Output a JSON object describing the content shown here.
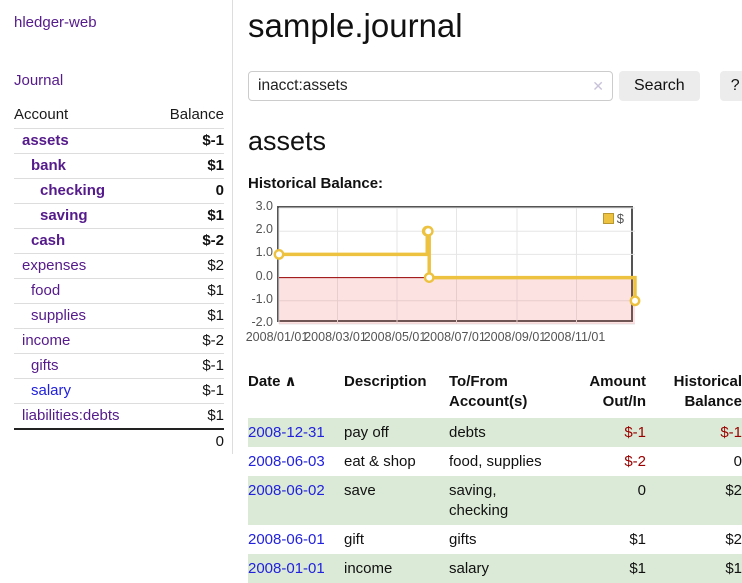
{
  "colors": {
    "link_purple": "#551a8b",
    "link_blue": "#2222dd",
    "negative_dark": "#990000",
    "negative_faded": "#b87878",
    "row_stripe_green": "#dbead6",
    "chart_series_yellow": "#edc240",
    "chart_negative_region": "#f7dada",
    "chart_zero_line": "#990000",
    "chart_border": "#545454",
    "button_bg": "#ececec"
  },
  "sidebar": {
    "brand": "hledger-web",
    "journal_link": "Journal",
    "table": {
      "account_header": "Account",
      "balance_header": "Balance",
      "accounts": [
        {
          "name": "assets",
          "depth": 0,
          "bold": true,
          "link_color": "purple",
          "balance": "$-1",
          "balance_style": "neg-dark"
        },
        {
          "name": "bank",
          "depth": 1,
          "bold": true,
          "link_color": "purple",
          "balance": "$1",
          "balance_style": "pos"
        },
        {
          "name": "checking",
          "depth": 2,
          "bold": true,
          "link_color": "purple",
          "balance": "0",
          "balance_style": "pos"
        },
        {
          "name": "saving",
          "depth": 2,
          "bold": true,
          "link_color": "purple",
          "balance": "$1",
          "balance_style": "pos"
        },
        {
          "name": "cash",
          "depth": 1,
          "bold": true,
          "link_color": "purple",
          "balance": "$-2",
          "balance_style": "neg-dark"
        },
        {
          "name": "expenses",
          "depth": 0,
          "bold": false,
          "link_color": "purple",
          "balance": "$2",
          "balance_style": "pos"
        },
        {
          "name": "food",
          "depth": 1,
          "bold": false,
          "link_color": "purple",
          "balance": "$1",
          "balance_style": "pos"
        },
        {
          "name": "supplies",
          "depth": 1,
          "bold": false,
          "link_color": "purple",
          "balance": "$1",
          "balance_style": "pos"
        },
        {
          "name": "income",
          "depth": 0,
          "bold": false,
          "link_color": "purple",
          "balance": "$-2",
          "balance_style": "neg-faded"
        },
        {
          "name": "gifts",
          "depth": 1,
          "bold": false,
          "link_color": "purple",
          "balance": "$-1",
          "balance_style": "neg-faded"
        },
        {
          "name": "salary",
          "depth": 1,
          "bold": false,
          "link_color": "blue",
          "balance": "$-1",
          "balance_style": "neg-faded"
        },
        {
          "name": "liabilities:debts",
          "depth": 0,
          "bold": false,
          "link_color": "purple",
          "balance": "$1",
          "balance_style": "pos"
        }
      ],
      "total": "0"
    }
  },
  "main": {
    "title": "sample.journal",
    "search": {
      "value": "inacct:assets",
      "clear_icon": "✕",
      "search_button": "Search",
      "help_button": "?"
    },
    "account_heading": "assets",
    "chart_title": "Historical Balance:"
  },
  "chart_data": {
    "type": "line",
    "step": true,
    "title": "Historical Balance:",
    "series": [
      {
        "name": "$",
        "color": "#edc240",
        "points": [
          {
            "x": "2008-01-01",
            "y": 1
          },
          {
            "x": "2008-06-01",
            "y": 2
          },
          {
            "x": "2008-06-02",
            "y": 2
          },
          {
            "x": "2008-06-03",
            "y": 0
          },
          {
            "x": "2008-12-31",
            "y": -1
          }
        ]
      }
    ],
    "x_range": [
      "2008-01-01",
      "2008-12-31"
    ],
    "ylim": [
      -2,
      3
    ],
    "x_ticks": [
      "2008/01/01",
      "2008/03/01",
      "2008/05/01",
      "2008/07/01",
      "2008/09/01",
      "2008/11/01"
    ],
    "y_ticks": [
      "3.0",
      "2.0",
      "1.0",
      "0.0",
      "-1.0",
      "-2.0"
    ],
    "legend": {
      "label": "$",
      "position": "top-right"
    },
    "grid": true,
    "negative_region": true
  },
  "register": {
    "headers": {
      "date": "Date",
      "description": "Description",
      "accounts": "To/From\nAccount(s)",
      "amount": "Amount\nOut/In",
      "balance": "Historical\nBalance"
    },
    "sort_icon": "∧",
    "rows": [
      {
        "date": "2008-12-31",
        "description": "pay off",
        "accounts": "debts",
        "amount": "$-1",
        "amount_neg": true,
        "balance": "$-1",
        "balance_neg": true
      },
      {
        "date": "2008-06-03",
        "description": "eat & shop",
        "accounts": "food, supplies",
        "amount": "$-2",
        "amount_neg": true,
        "balance": "0",
        "balance_neg": false
      },
      {
        "date": "2008-06-02",
        "description": "save",
        "accounts": "saving,\nchecking",
        "amount": "0",
        "amount_neg": false,
        "balance": "$2",
        "balance_neg": false
      },
      {
        "date": "2008-06-01",
        "description": "gift",
        "accounts": "gifts",
        "amount": "$1",
        "amount_neg": false,
        "balance": "$2",
        "balance_neg": false
      },
      {
        "date": "2008-01-01",
        "description": "income",
        "accounts": "salary",
        "amount": "$1",
        "amount_neg": false,
        "balance": "$1",
        "balance_neg": false
      }
    ]
  }
}
